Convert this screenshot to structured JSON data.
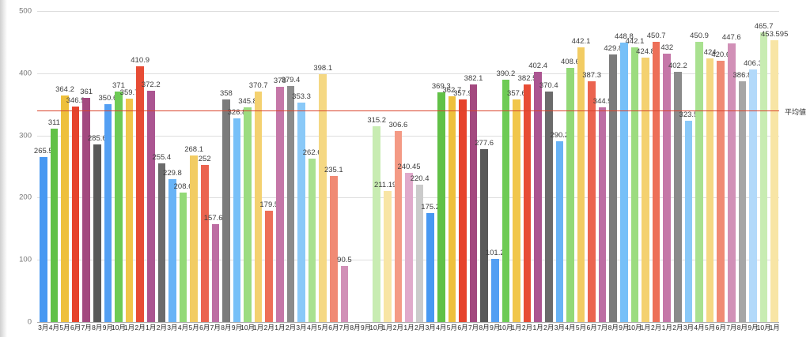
{
  "chart_data": {
    "type": "bar",
    "title": "",
    "xlabel": "",
    "ylabel": "",
    "ylim": [
      0,
      500
    ],
    "yticks": [
      0,
      100,
      200,
      300,
      400,
      500
    ],
    "grid": true,
    "legend": "none",
    "bar_value_labels_shown": true,
    "average_line": {
      "label": "平均値",
      "color": "#d9432b"
    },
    "categories": [
      "3月",
      "4月",
      "5月",
      "6月",
      "7月",
      "8月",
      "9月",
      "10月",
      "1月",
      "2月",
      "1月",
      "2月",
      "3月",
      "4月",
      "5月",
      "6月",
      "7月",
      "8月",
      "9月",
      "10月",
      "1月",
      "2月",
      "1月",
      "2月",
      "3月",
      "4月",
      "5月",
      "6月",
      "7月",
      "8月",
      "9月",
      "10月",
      "1月",
      "2月",
      "1月",
      "2月",
      "3月",
      "4月",
      "5月",
      "6月",
      "7月",
      "8月",
      "9月",
      "10月",
      "1月",
      "2月",
      "1月",
      "2月",
      "3月",
      "4月",
      "5月",
      "6月",
      "7月",
      "8月",
      "9月",
      "10月",
      "1月",
      "2月",
      "1月",
      "2月",
      "3月",
      "4月",
      "5月",
      "6月",
      "7月",
      "8月",
      "9月",
      "10月",
      "1月"
    ],
    "values": [
      265.5,
      311,
      364.2,
      346.9,
      361,
      285.6,
      350.6,
      371,
      359.7,
      410.9,
      372.2,
      255.4,
      229.8,
      208.6,
      268.1,
      252,
      157.65,
      358,
      326.8,
      345.8,
      370.7,
      179.5,
      378,
      379.4,
      353.3,
      262.6,
      398.1,
      235.1,
      90.5,
      null,
      null,
      315.2,
      211.195,
      306.6,
      240.45,
      220.4,
      175.2,
      369.3,
      362.7,
      357.9,
      382.1,
      277.6,
      101.2,
      390.2,
      357.6,
      382.5,
      402.4,
      370.4,
      290.2,
      408.6,
      442.1,
      387.3,
      344.9,
      429.8,
      448.8,
      442.1,
      424.8,
      450.7,
      432,
      402.2,
      323.5,
      450.9,
      424,
      420.6,
      447.6,
      386.8,
      406.3,
      465.7,
      453.595
    ],
    "palette": {
      "hue_order": [
        "blue",
        "green",
        "yellow",
        "red",
        "purple",
        "gray"
      ],
      "fade_resets_every": 36,
      "shades": {
        "blue": [
          "#4798f2",
          "#539ff3",
          "#68b3f6",
          "#77c0f8",
          "#8ac9f8",
          "#b2d9fa"
        ],
        "green": [
          "#61c147",
          "#6ecb55",
          "#93d977",
          "#9cdc80",
          "#a9e190",
          "#c8ecb2"
        ],
        "yellow": [
          "#eec03c",
          "#f1c64b",
          "#f2cc63",
          "#f4d170",
          "#f5d883",
          "#f8e5a5"
        ],
        "red": [
          "#e6432c",
          "#e74c35",
          "#eb6450",
          "#ed6f58",
          "#f08a74",
          "#f49a85"
        ],
        "purple": [
          "#a3497f",
          "#ab5591",
          "#bd6da3",
          "#c577a8",
          "#d190b7",
          "#e0aacb"
        ],
        "gray": [
          "#595959",
          "#6b6b6b",
          "#7b7b7b",
          "#8b8b8b",
          "#a6a6a6",
          "#cbcbcb"
        ]
      }
    }
  }
}
